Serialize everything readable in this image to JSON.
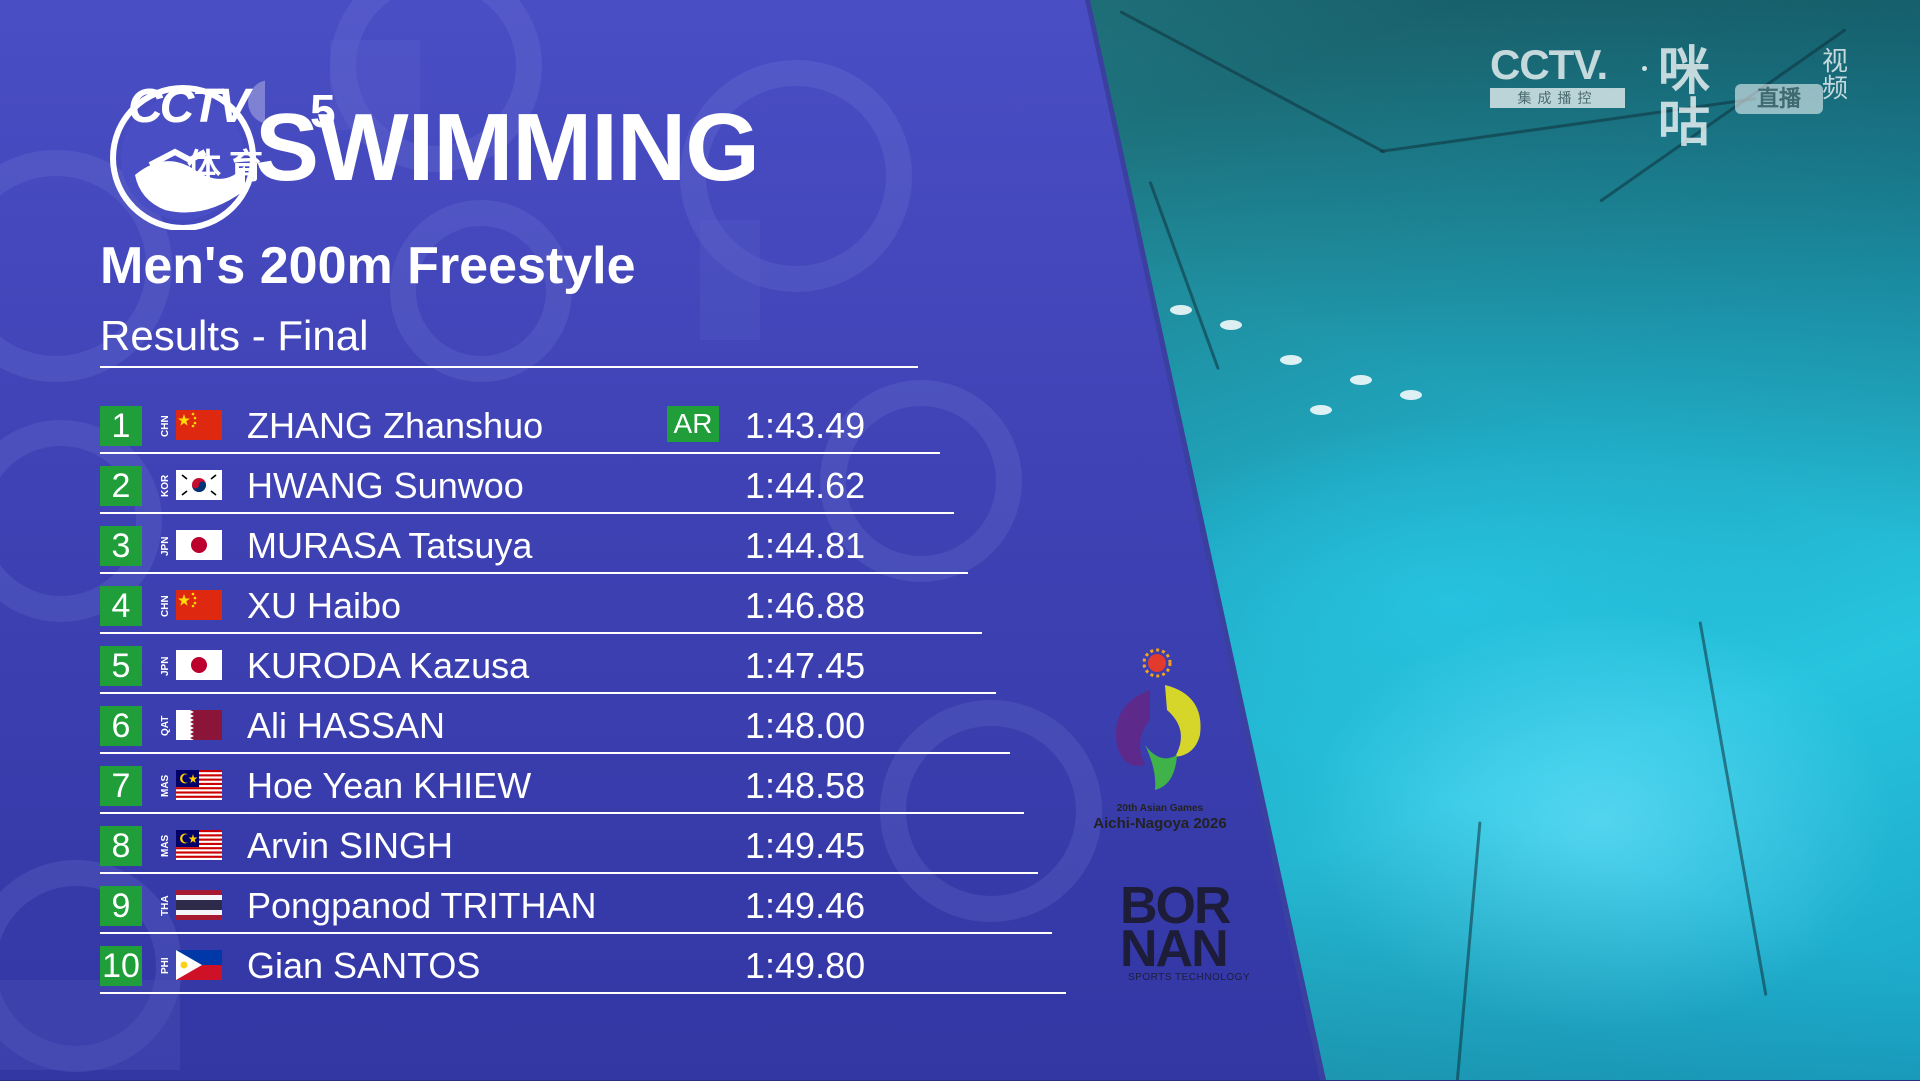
{
  "header": {
    "channel_logo_text": "CCTV",
    "channel_number": "5",
    "channel_logo_chars": "体育",
    "sport_title": "SWIMMING",
    "event_title": "Men's 200m Freestyle",
    "results_label": "Results - Final"
  },
  "results": [
    {
      "rank": "1",
      "noc": "CHN",
      "flag": "china-flag-icon",
      "name": "ZHANG Zhanshuo",
      "record": "AR",
      "time": "1:43.49"
    },
    {
      "rank": "2",
      "noc": "KOR",
      "flag": "korea-flag-icon",
      "name": "HWANG Sunwoo",
      "record": "",
      "time": "1:44.62"
    },
    {
      "rank": "3",
      "noc": "JPN",
      "flag": "japan-flag-icon",
      "name": "MURASA Tatsuya",
      "record": "",
      "time": "1:44.81"
    },
    {
      "rank": "4",
      "noc": "CHN",
      "flag": "china-flag-icon",
      "name": "XU Haibo",
      "record": "",
      "time": "1:46.88"
    },
    {
      "rank": "5",
      "noc": "JPN",
      "flag": "japan-flag-icon",
      "name": "KURODA Kazusa",
      "record": "",
      "time": "1:47.45"
    },
    {
      "rank": "6",
      "noc": "QAT",
      "flag": "qatar-flag-icon",
      "name": "Ali HASSAN",
      "record": "",
      "time": "1:48.00"
    },
    {
      "rank": "7",
      "noc": "MAS",
      "flag": "malaysia-flag-icon",
      "name": "Hoe Yean KHIEW",
      "record": "",
      "time": "1:48.58"
    },
    {
      "rank": "8",
      "noc": "MAS",
      "flag": "malaysia-flag-icon",
      "name": "Arvin SINGH",
      "record": "",
      "time": "1:49.45"
    },
    {
      "rank": "9",
      "noc": "THA",
      "flag": "thailand-flag-icon",
      "name": "Pongpanod TRITHAN",
      "record": "",
      "time": "1:49.46"
    },
    {
      "rank": "10",
      "noc": "PHI",
      "flag": "philippines-flag-icon",
      "name": "Gian SANTOS",
      "record": "",
      "time": "1:49.80"
    }
  ],
  "sponsors": {
    "asian_games_line1": "20th Asian Games",
    "asian_games_line2": "Aichi-Nagoya 2026",
    "bornan_line1": "BOR",
    "bornan_line2": "NAN",
    "bornan_sub": "SPORTS TECHNOLOGY"
  },
  "watermark": {
    "cctv": "CCTV.",
    "cctv_sub": "集成播控",
    "migu": "咪咕",
    "live": "直播",
    "video": "视频"
  },
  "colors": {
    "panel": "#3e42b4",
    "rank_badge": "#1f9e3a",
    "band": "#d6d6ea",
    "text": "#ffffff"
  }
}
